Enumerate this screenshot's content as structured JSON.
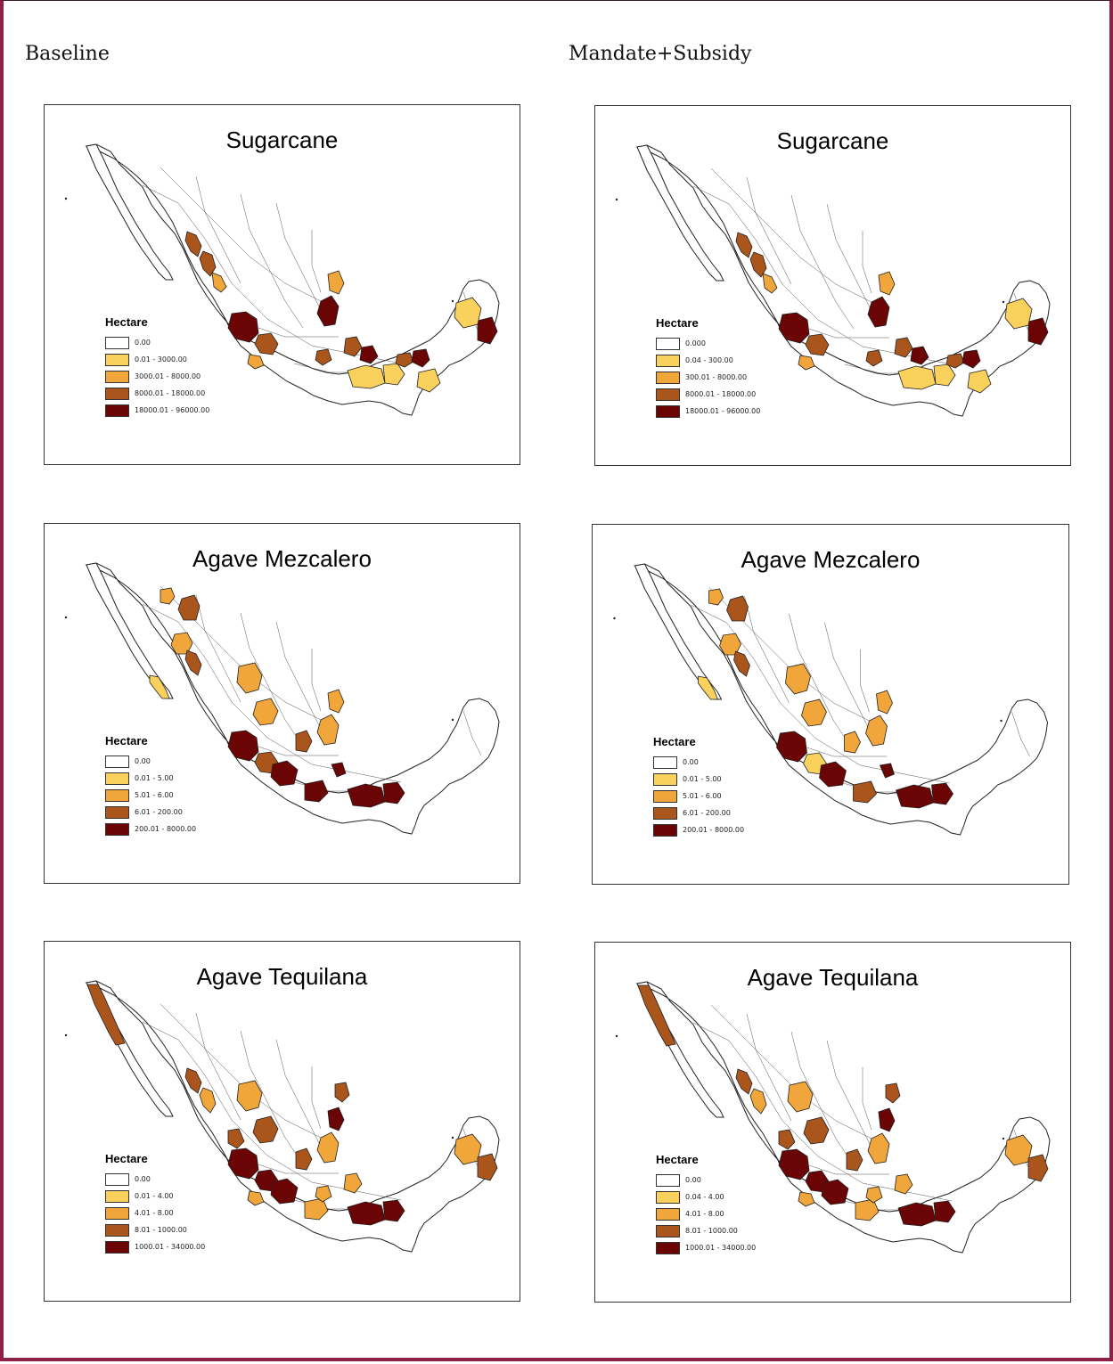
{
  "columns": {
    "left": "Baseline",
    "right": "Mandate+Subsidy"
  },
  "colors": {
    "c0": "#ffffff",
    "c1": "#f9d15c",
    "c2": "#f1a63b",
    "c3": "#a9551c",
    "c4": "#6b0404",
    "outline": "#222222",
    "frame": "#8e2045"
  },
  "panels": [
    {
      "title": "Sugarcane",
      "legend_title": "Hectare",
      "legend": [
        "0.00",
        "0.01 - 3000.00",
        "3000.01 - 8000.00",
        "8000.01 - 18000.00",
        "18000.01 - 96000.00"
      ],
      "regions": [
        {
          "p": "sin",
          "c": 3
        },
        {
          "p": "sin2",
          "c": 3
        },
        {
          "p": "sin3",
          "c": 2
        },
        {
          "p": "jal",
          "c": 4
        },
        {
          "p": "jal2",
          "c": 3
        },
        {
          "p": "col",
          "c": 2
        },
        {
          "p": "slp",
          "c": 4
        },
        {
          "p": "tam",
          "c": 2
        },
        {
          "p": "ver1",
          "c": 3
        },
        {
          "p": "ver2",
          "c": 4
        },
        {
          "p": "mor",
          "c": 3
        },
        {
          "p": "oax",
          "c": 1
        },
        {
          "p": "oax2",
          "c": 1
        },
        {
          "p": "tab",
          "c": 3
        },
        {
          "p": "tab2",
          "c": 4
        },
        {
          "p": "chp",
          "c": 1
        },
        {
          "p": "qroo",
          "c": 4
        },
        {
          "p": "yuc",
          "c": 1
        }
      ]
    },
    {
      "title": "Agave Mezcalero",
      "legend_title": "Hectare",
      "legend": [
        "0.00",
        "0.01 - 5.00",
        "5.01 - 6.00",
        "6.01 - 200.00",
        "200.01 - 8000.00"
      ],
      "regions": [
        {
          "p": "son1",
          "c": 2
        },
        {
          "p": "son2",
          "c": 3
        },
        {
          "p": "chi",
          "c": 2
        },
        {
          "p": "bcs",
          "c": 1
        },
        {
          "p": "sin",
          "c": 3
        },
        {
          "p": "dur",
          "c": 2
        },
        {
          "p": "zac",
          "c": 2
        },
        {
          "p": "slp",
          "c": 2
        },
        {
          "p": "tam",
          "c": 2
        },
        {
          "p": "jal",
          "c": 4
        },
        {
          "p": "jal2",
          "c": 3
        },
        {
          "p": "mich",
          "c": 4
        },
        {
          "p": "gto",
          "c": 3
        },
        {
          "p": "gro",
          "c": 4
        },
        {
          "p": "oax",
          "c": 4
        },
        {
          "p": "oax2",
          "c": 4
        },
        {
          "p": "pue",
          "c": 4
        }
      ]
    },
    {
      "title": "Agave Tequilana",
      "legend_title": "Hectare",
      "legend": [
        "0.00",
        "0.01 - 4.00",
        "4.01 - 8.00",
        "8.01 - 1000.00",
        "1000.01 - 34000.00"
      ],
      "regions": [
        {
          "p": "bc",
          "c": 3
        },
        {
          "p": "sin",
          "c": 3
        },
        {
          "p": "sin2",
          "c": 2
        },
        {
          "p": "dur",
          "c": 2
        },
        {
          "p": "nay",
          "c": 3
        },
        {
          "p": "jal",
          "c": 4
        },
        {
          "p": "jal2",
          "c": 4
        },
        {
          "p": "mich",
          "c": 4
        },
        {
          "p": "col",
          "c": 2
        },
        {
          "p": "gro",
          "c": 2
        },
        {
          "p": "zac",
          "c": 3
        },
        {
          "p": "gto",
          "c": 3
        },
        {
          "p": "slp",
          "c": 2
        },
        {
          "p": "tam",
          "c": 4
        },
        {
          "p": "tam2",
          "c": 3
        },
        {
          "p": "ver1",
          "c": 2
        },
        {
          "p": "oax",
          "c": 4
        },
        {
          "p": "oax2",
          "c": 4
        },
        {
          "p": "mor",
          "c": 2
        },
        {
          "p": "yuc",
          "c": 2
        },
        {
          "p": "qroo",
          "c": 3
        }
      ]
    },
    {
      "title": "Sugarcane",
      "legend_title": "Hectare",
      "legend": [
        "0.000",
        "0.04 - 300.00",
        "300.01 - 8000.00",
        "8000.01 - 18000.00",
        "18000.01 - 96000.00"
      ],
      "regions": [
        {
          "p": "sin",
          "c": 3
        },
        {
          "p": "sin2",
          "c": 3
        },
        {
          "p": "sin3",
          "c": 2
        },
        {
          "p": "jal",
          "c": 4
        },
        {
          "p": "jal2",
          "c": 3
        },
        {
          "p": "col",
          "c": 2
        },
        {
          "p": "slp",
          "c": 4
        },
        {
          "p": "tam",
          "c": 2
        },
        {
          "p": "ver1",
          "c": 3
        },
        {
          "p": "ver2",
          "c": 4
        },
        {
          "p": "mor",
          "c": 3
        },
        {
          "p": "oax",
          "c": 1
        },
        {
          "p": "oax2",
          "c": 1
        },
        {
          "p": "tab",
          "c": 3
        },
        {
          "p": "tab2",
          "c": 4
        },
        {
          "p": "chp",
          "c": 1
        },
        {
          "p": "qroo",
          "c": 4
        },
        {
          "p": "yuc",
          "c": 1
        }
      ]
    },
    {
      "title": "Agave Mezcalero",
      "legend_title": "Hectare",
      "legend": [
        "0.00",
        "0.01 - 5.00",
        "5.01 - 6.00",
        "6.01 - 200.00",
        "200.01 - 8000.00"
      ],
      "regions": [
        {
          "p": "son1",
          "c": 2
        },
        {
          "p": "son2",
          "c": 3
        },
        {
          "p": "chi",
          "c": 2
        },
        {
          "p": "bcs",
          "c": 1
        },
        {
          "p": "sin",
          "c": 3
        },
        {
          "p": "dur",
          "c": 2
        },
        {
          "p": "zac",
          "c": 2
        },
        {
          "p": "slp",
          "c": 2
        },
        {
          "p": "tam",
          "c": 2
        },
        {
          "p": "jal",
          "c": 4
        },
        {
          "p": "jal2",
          "c": 1
        },
        {
          "p": "mich",
          "c": 4
        },
        {
          "p": "gto",
          "c": 2
        },
        {
          "p": "gro",
          "c": 3
        },
        {
          "p": "oax",
          "c": 4
        },
        {
          "p": "oax2",
          "c": 4
        },
        {
          "p": "pue",
          "c": 4
        }
      ]
    },
    {
      "title": "Agave Tequilana",
      "legend_title": "Hectare",
      "legend": [
        "0.00",
        "0.04 - 4.00",
        "4.01 - 8.00",
        "8.01 - 1000.00",
        "1000.01 - 34000.00"
      ],
      "regions": [
        {
          "p": "bc",
          "c": 3
        },
        {
          "p": "sin",
          "c": 3
        },
        {
          "p": "sin2",
          "c": 2
        },
        {
          "p": "dur",
          "c": 2
        },
        {
          "p": "nay",
          "c": 3
        },
        {
          "p": "jal",
          "c": 4
        },
        {
          "p": "jal2",
          "c": 4
        },
        {
          "p": "mich",
          "c": 4
        },
        {
          "p": "col",
          "c": 2
        },
        {
          "p": "gro",
          "c": 2
        },
        {
          "p": "zac",
          "c": 3
        },
        {
          "p": "gto",
          "c": 3
        },
        {
          "p": "slp",
          "c": 2
        },
        {
          "p": "tam",
          "c": 4
        },
        {
          "p": "tam2",
          "c": 3
        },
        {
          "p": "ver1",
          "c": 2
        },
        {
          "p": "oax",
          "c": 4
        },
        {
          "p": "oax2",
          "c": 4
        },
        {
          "p": "mor",
          "c": 2
        },
        {
          "p": "yuc",
          "c": 2
        },
        {
          "p": "qroo",
          "c": 3
        }
      ]
    }
  ]
}
